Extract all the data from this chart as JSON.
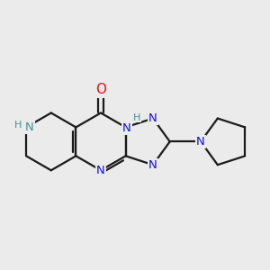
{
  "background_color": "#ebebeb",
  "bond_color": "#1a1a1a",
  "bond_width": 1.6,
  "N_color": "#1010dd",
  "NH_color": "#4a9090",
  "O_color": "#ee1111",
  "fig_size": [
    3.0,
    3.0
  ],
  "dpi": 100,
  "xlim": [
    -2.6,
    3.4
  ],
  "ylim": [
    -1.8,
    1.9
  ]
}
